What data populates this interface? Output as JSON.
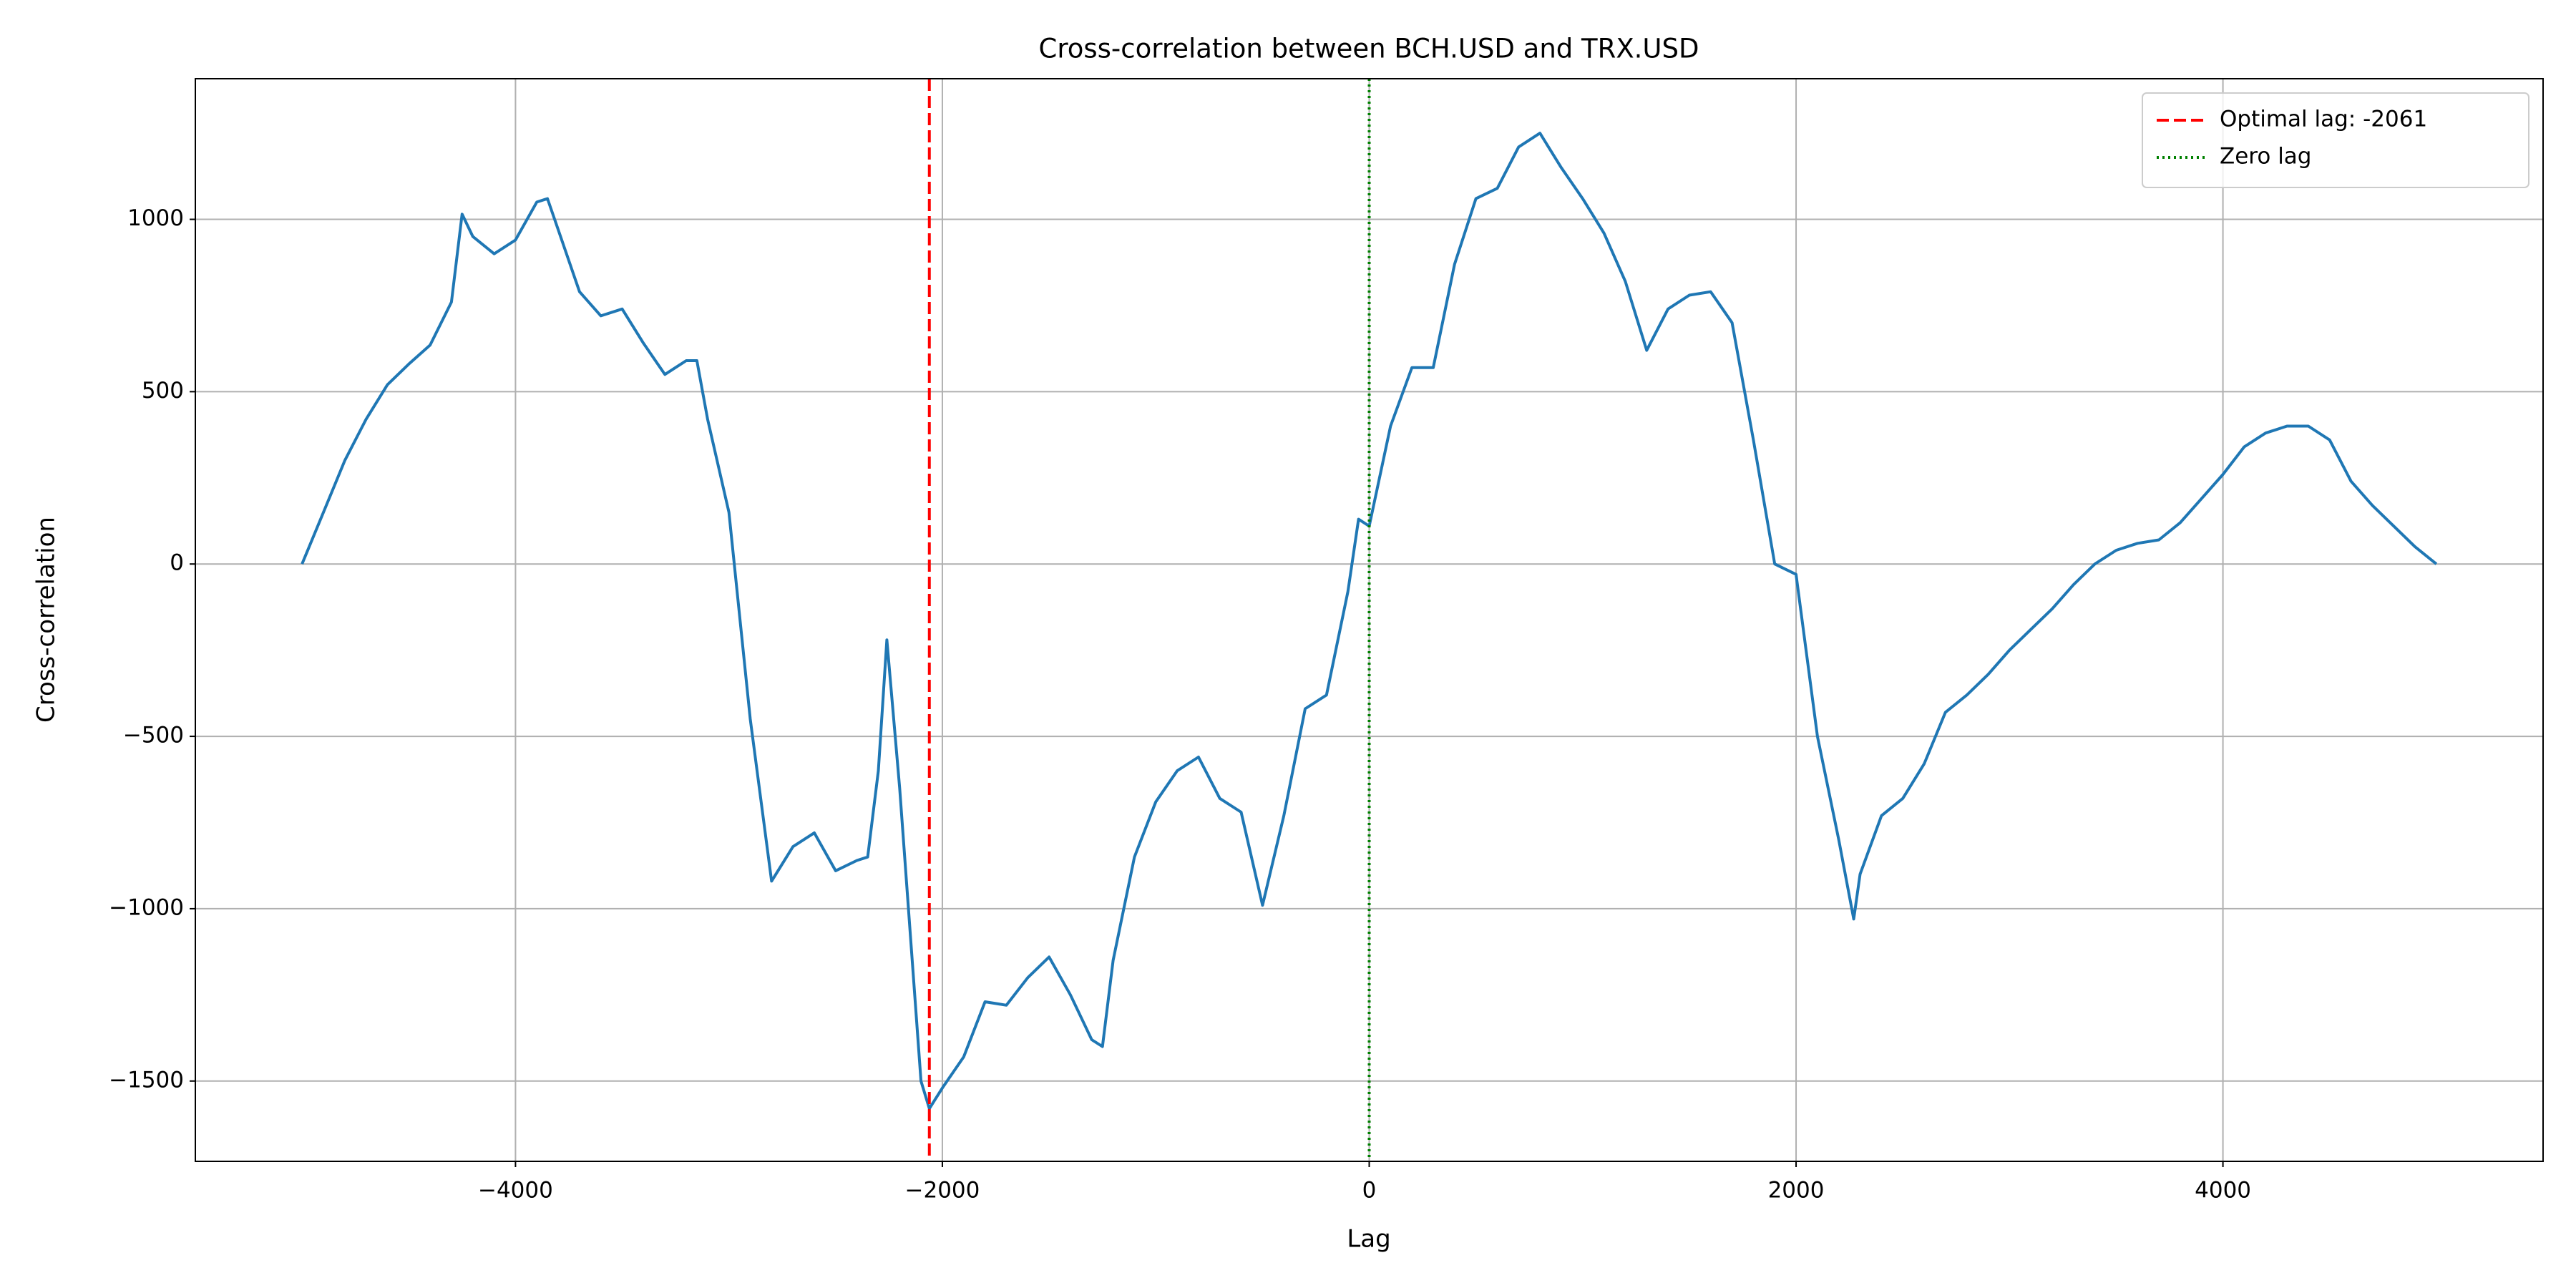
{
  "chart_data": {
    "type": "line",
    "title": "Cross-correlation between BCH.USD and TRX.USD",
    "xlabel": "Lag",
    "ylabel": "Cross-correlation",
    "x": [
      -5000,
      -4900,
      -4800,
      -4700,
      -4600,
      -4500,
      -4400,
      -4300,
      -4250,
      -4200,
      -4100,
      -4000,
      -3900,
      -3850,
      -3800,
      -3700,
      -3600,
      -3500,
      -3400,
      -3300,
      -3200,
      -3150,
      -3100,
      -3000,
      -2900,
      -2800,
      -2700,
      -2600,
      -2500,
      -2400,
      -2350,
      -2300,
      -2260,
      -2200,
      -2100,
      -2061,
      -2000,
      -1900,
      -1800,
      -1700,
      -1600,
      -1500,
      -1400,
      -1300,
      -1250,
      -1200,
      -1100,
      -1000,
      -900,
      -800,
      -700,
      -600,
      -500,
      -400,
      -300,
      -200,
      -100,
      -50,
      0,
      100,
      200,
      300,
      400,
      500,
      600,
      700,
      800,
      900,
      1000,
      1100,
      1200,
      1300,
      1400,
      1500,
      1600,
      1700,
      1800,
      1900,
      2000,
      2100,
      2200,
      2270,
      2300,
      2400,
      2500,
      2600,
      2700,
      2800,
      2900,
      3000,
      3100,
      3200,
      3300,
      3400,
      3500,
      3600,
      3700,
      3800,
      3900,
      4000,
      4100,
      4200,
      4300,
      4400,
      4500,
      4600,
      4700,
      4800,
      4900,
      5000
    ],
    "series": [
      {
        "color": "#1f77b4",
        "values": [
          0,
          150,
          300,
          420,
          520,
          580,
          635,
          760,
          1015,
          950,
          900,
          940,
          1050,
          1060,
          970,
          790,
          720,
          740,
          640,
          550,
          590,
          590,
          420,
          150,
          -450,
          -920,
          -820,
          -780,
          -890,
          -860,
          -850,
          -600,
          -220,
          -650,
          -1500,
          -1580,
          -1520,
          -1430,
          -1270,
          -1280,
          -1200,
          -1140,
          -1250,
          -1380,
          -1400,
          -1150,
          -850,
          -690,
          -600,
          -560,
          -680,
          -720,
          -990,
          -730,
          -420,
          -380,
          -80,
          130,
          110,
          400,
          570,
          570,
          870,
          1060,
          1090,
          1210,
          1250,
          1150,
          1060,
          960,
          820,
          620,
          740,
          780,
          790,
          700,
          360,
          0,
          -30,
          -500,
          -800,
          -1030,
          -900,
          -730,
          -680,
          -580,
          -430,
          -380,
          -320,
          -250,
          -190,
          -130,
          -60,
          0,
          40,
          60,
          70,
          120,
          190,
          260,
          340,
          380,
          400,
          400,
          360,
          240,
          170,
          110,
          50,
          0
        ]
      }
    ],
    "vlines": [
      {
        "x": -2061,
        "name": "Optimal lag: -2061",
        "color": "#ff0000",
        "style": "dashed"
      },
      {
        "x": 0,
        "name": "Zero lag",
        "color": "#008000",
        "style": "dotted"
      }
    ],
    "xlim": [
      -5500,
      5500
    ],
    "xticks": [
      {
        "value": -4000,
        "label": "−4000"
      },
      {
        "value": -2000,
        "label": "−2000"
      },
      0,
      2000,
      4000
    ],
    "ylim": [
      -1733,
      1408
    ],
    "yticks": [
      {
        "value": -1500,
        "label": "−1500"
      },
      {
        "value": -1000,
        "label": "−1000"
      },
      {
        "value": -500,
        "label": "−500"
      },
      0,
      500,
      1000
    ],
    "grid": true,
    "legend": "upper right"
  }
}
